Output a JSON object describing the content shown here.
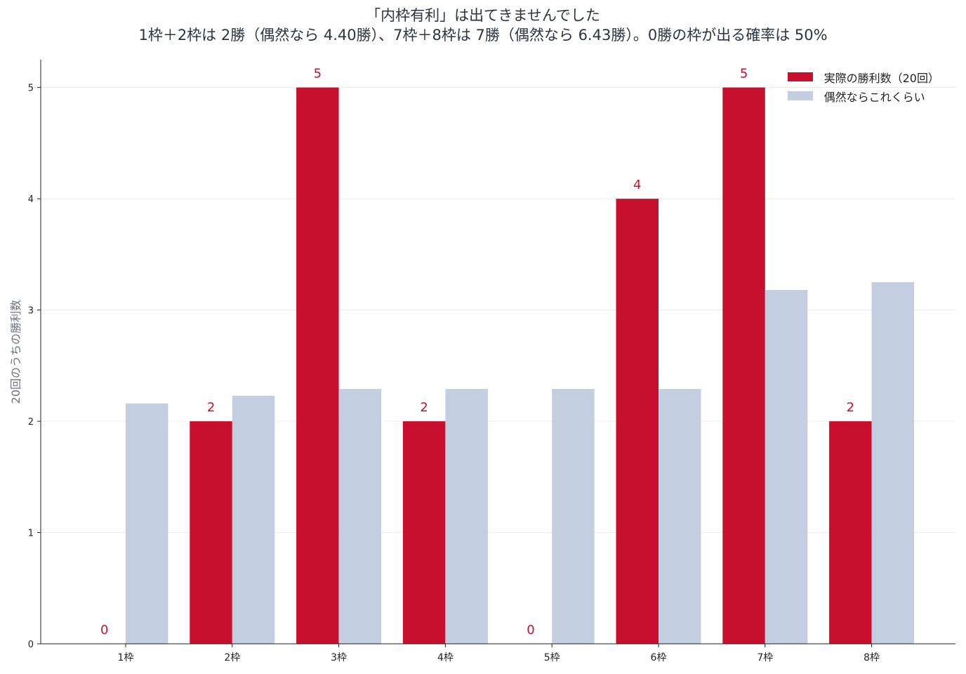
{
  "chart_data": {
    "type": "bar",
    "title": "「内枠有利」は出てきませんでした",
    "subtitle": "1枠＋2枠は 2勝（偶然なら 4.40勝）、7枠＋8枠は 7勝（偶然なら 6.43勝）。0勝の枠が出る確率は 50%",
    "xlabel": "",
    "ylabel": "20回のうちの勝利数",
    "categories": [
      "1枠",
      "2枠",
      "3枠",
      "4枠",
      "5枠",
      "6枠",
      "7枠",
      "8枠"
    ],
    "series": [
      {
        "name": "実際の勝利数（20回）",
        "color": "#c8102e",
        "values": [
          0,
          2,
          5,
          2,
          0,
          4,
          5,
          2
        ],
        "data_labels": [
          "0",
          "2",
          "5",
          "2",
          "0",
          "4",
          "5",
          "2"
        ]
      },
      {
        "name": "偶然ならこれくらい",
        "color": "#c3cfe0",
        "values": [
          2.16,
          2.23,
          2.29,
          2.29,
          2.29,
          2.29,
          3.18,
          3.25
        ]
      }
    ],
    "ylim": [
      0,
      5.25
    ],
    "yticks": [
      "0",
      "1",
      "2",
      "3",
      "4",
      "5"
    ],
    "grid": "horizontal",
    "legend_position": "top-right"
  }
}
